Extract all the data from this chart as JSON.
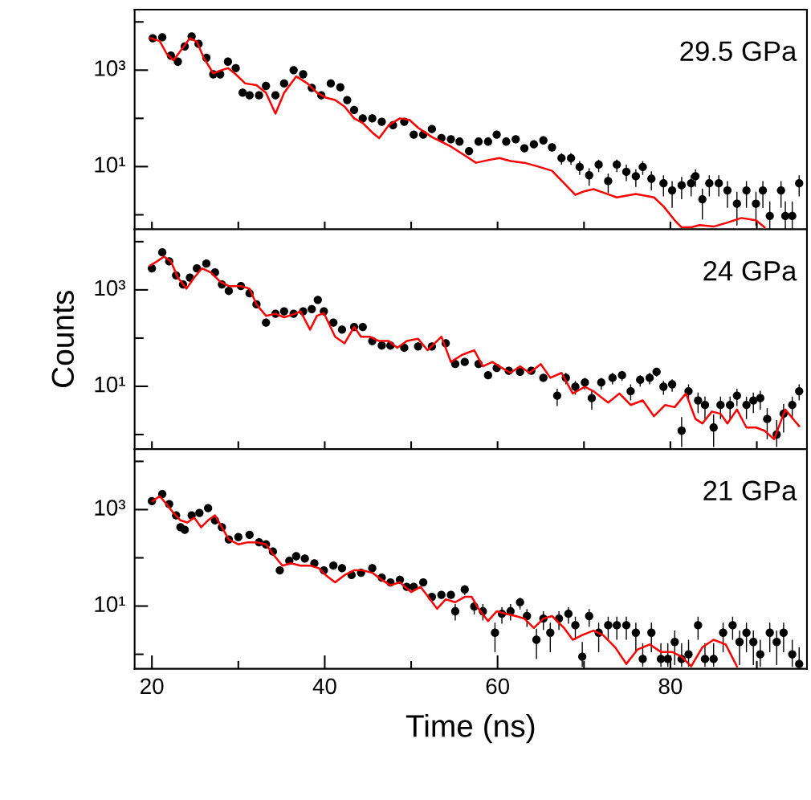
{
  "chart_data": [
    {
      "type": "scatter",
      "log": "y",
      "tick_labels": "y",
      "annotations": [
        "29.5 GPa"
      ],
      "xlim": [
        18,
        95.8
      ],
      "xticks": [
        {
          "value": 20,
          "label": null
        },
        {
          "value": 30,
          "label": null
        },
        {
          "value": 40,
          "label": null
        },
        {
          "value": 50,
          "label": null
        },
        {
          "value": 60,
          "label": null
        },
        {
          "value": 70,
          "label": null
        },
        {
          "value": 80,
          "label": null
        },
        {
          "value": 90,
          "label": null
        }
      ],
      "ylim": [
        0.5,
        18000
      ],
      "yticks": [
        {
          "value": 1,
          "label": null
        },
        {
          "value": 10,
          "label": "10¹"
        },
        {
          "value": 100,
          "label": null
        },
        {
          "value": 1000,
          "label": "10³"
        },
        {
          "value": 10000,
          "label": null
        }
      ],
      "series": [
        {
          "type": "scatter",
          "color": "#000000",
          "marker": "circle",
          "x": [
            20.1,
            21.2,
            22.2,
            23.0,
            23.8,
            24.6,
            25.4,
            26.3,
            27.1,
            27.9,
            28.8,
            29.7,
            30.5,
            31.3,
            32.4,
            33.2,
            34.3,
            35.3,
            36.4,
            37.5,
            38.5,
            39.6,
            40.7,
            41.8,
            42.6,
            43.4,
            44.4,
            45.5,
            46.6,
            47.9,
            49.2,
            50.3,
            51.4,
            52.4,
            53.5,
            54.6,
            55.6,
            56.7,
            57.8,
            58.9,
            59.9,
            61.0,
            62.1,
            63.1,
            64.2,
            65.3,
            66.3,
            67.4,
            68.5,
            69.5,
            70.6,
            71.7,
            72.8,
            73.8,
            74.9,
            76.0,
            76.8,
            77.8,
            79.2,
            80.2,
            81.3,
            82.4,
            82.9,
            83.7,
            84.5,
            85.6,
            86.6,
            87.7,
            88.8,
            89.9,
            90.7,
            91.5,
            92.8,
            93.3,
            94.1,
            94.9
          ],
          "values": [
            4600,
            4800,
            2000,
            1500,
            3100,
            5000,
            3500,
            1800,
            820,
            820,
            1500,
            1100,
            340,
            300,
            300,
            470,
            300,
            530,
            1000,
            820,
            430,
            300,
            530,
            440,
            240,
            150,
            100,
            100,
            85,
            72,
            85,
            46,
            46,
            60,
            39,
            37,
            33,
            21,
            33,
            33,
            46,
            33,
            37,
            24,
            29,
            35,
            25,
            15,
            15,
            9.8,
            6.6,
            11,
            5.0,
            11,
            7.8,
            6.3,
            9.8,
            5.6,
            4.5,
            3.2,
            4.1,
            4.5,
            6.3,
            2.1,
            4.5,
            4.5,
            3.2,
            1.7,
            3.2,
            1.7,
            3.2,
            0.95,
            3.2,
            0.95,
            0.95,
            4.5
          ],
          "errors": [
            null,
            null,
            null,
            null,
            null,
            null,
            null,
            null,
            null,
            null,
            null,
            null,
            null,
            null,
            null,
            null,
            null,
            null,
            null,
            null,
            null,
            null,
            null,
            null,
            null,
            null,
            null,
            null,
            null,
            null,
            null,
            null,
            null,
            null,
            null,
            null,
            null,
            null,
            null,
            null,
            null,
            null,
            null,
            null,
            null,
            null,
            null,
            [
              11,
              19
            ],
            [
              11,
              19
            ],
            [
              6.7,
              13
            ],
            [
              4.0,
              9.2
            ],
            [
              7.7,
              14
            ],
            [
              2.8,
              7.2
            ],
            [
              7.7,
              14
            ],
            [
              5.0,
              11
            ],
            [
              3.8,
              8.8
            ],
            [
              6.7,
              13
            ],
            [
              3.2,
              8.0
            ],
            [
              2.4,
              6.6
            ],
            [
              1.4,
              5.0
            ],
            [
              2.1,
              6.1
            ],
            [
              2.4,
              6.6
            ],
            [
              3.8,
              8.8
            ],
            [
              0.8,
              3.5
            ],
            [
              2.4,
              6.6
            ],
            [
              2.4,
              6.6
            ],
            [
              1.4,
              5.0
            ],
            [
              0.6,
              3.0
            ],
            [
              1.4,
              5.0
            ],
            [
              0.6,
              3.0
            ],
            [
              1.4,
              5.0
            ],
            [
              0.5,
              1.9
            ],
            [
              1.4,
              5.0
            ],
            [
              0.5,
              1.9
            ],
            [
              0.5,
              1.9
            ],
            [
              2.4,
              6.6
            ]
          ]
        },
        {
          "type": "line",
          "color": "#ff0000",
          "x": [
            19.8,
            20.9,
            21.7,
            22.5,
            23.3,
            24.4,
            25.2,
            26.0,
            27.1,
            27.9,
            28.8,
            29.7,
            30.8,
            32.1,
            33.2,
            34.3,
            35.3,
            36.7,
            38.0,
            39.1,
            40.1,
            41.2,
            42.3,
            43.4,
            44.4,
            45.5,
            46.3,
            47.4,
            48.7,
            49.8,
            50.8,
            52.4,
            54.6,
            56.2,
            57.5,
            58.9,
            60.2,
            61.5,
            63.1,
            64.7,
            66.3,
            67.7,
            69.0,
            70.1,
            71.1,
            72.2,
            73.8,
            76.0,
            78.1,
            79.2,
            80.5,
            81.3,
            82.4,
            83.4,
            85.0,
            86.6,
            88.2,
            89.9,
            90.9
          ],
          "values": [
            4600,
            4000,
            2200,
            1600,
            2500,
            4600,
            3900,
            1800,
            860,
            980,
            1100,
            820,
            530,
            490,
            340,
            125,
            340,
            740,
            530,
            340,
            270,
            240,
            175,
            100,
            80,
            51,
            39,
            72,
            100,
            93,
            64,
            41,
            26,
            17,
            12,
            13.6,
            15,
            13,
            12,
            10,
            8.2,
            4.5,
            2.6,
            3.1,
            3.4,
            2.9,
            2.3,
            2.7,
            2.3,
            1.5,
            0.77,
            0.55,
            0.55,
            0.61,
            0.57,
            0.69,
            0.86,
            0.77,
            0.55
          ]
        }
      ]
    },
    {
      "type": "scatter",
      "log": "y",
      "tick_labels": "y",
      "ylabel": "Counts",
      "annotations": [
        "24 GPa"
      ],
      "xlim": [
        18,
        95.8
      ],
      "xticks": [
        {
          "value": 20,
          "label": null
        },
        {
          "value": 30,
          "label": null
        },
        {
          "value": 40,
          "label": null
        },
        {
          "value": 50,
          "label": null
        },
        {
          "value": 60,
          "label": null
        },
        {
          "value": 70,
          "label": null
        },
        {
          "value": 80,
          "label": null
        },
        {
          "value": 90,
          "label": null
        }
      ],
      "ylim": [
        0.5,
        18000
      ],
      "yticks": [
        {
          "value": 1,
          "label": null
        },
        {
          "value": 10,
          "label": "10¹"
        },
        {
          "value": 100,
          "label": null
        },
        {
          "value": 1000,
          "label": "10³"
        },
        {
          "value": 10000,
          "label": null
        }
      ],
      "series": [
        {
          "type": "scatter",
          "color": "#000000",
          "marker": "circle",
          "x": [
            20.0,
            21.2,
            22.0,
            22.8,
            23.6,
            24.4,
            25.2,
            26.3,
            27.3,
            28.1,
            28.9,
            30.3,
            31.3,
            32.1,
            33.2,
            34.3,
            35.3,
            36.4,
            37.5,
            38.5,
            39.2,
            39.9,
            41.0,
            42.0,
            43.4,
            44.4,
            45.5,
            46.6,
            47.6,
            49.2,
            50.8,
            52.4,
            54.0,
            55.1,
            56.2,
            57.8,
            58.9,
            59.9,
            61.3,
            62.6,
            63.9,
            65.3,
            66.9,
            67.9,
            69.0,
            70.1,
            70.9,
            72.0,
            73.3,
            74.4,
            75.4,
            76.5,
            77.6,
            78.4,
            79.2,
            80.2,
            81.3,
            82.1,
            83.2,
            84.0,
            85.0,
            85.8,
            86.9,
            87.7,
            88.8,
            89.6,
            90.4,
            91.2,
            92.3,
            93.1,
            94.1,
            94.9
          ],
          "values": [
            2800,
            6000,
            3900,
            2000,
            1300,
            1800,
            2800,
            3500,
            2300,
            1300,
            950,
            1200,
            850,
            500,
            210,
            320,
            360,
            320,
            360,
            400,
            620,
            360,
            210,
            150,
            170,
            170,
            87,
            70,
            70,
            63,
            67,
            67,
            78,
            29,
            32,
            29,
            17,
            24,
            21,
            20,
            21,
            15,
            6.4,
            15,
            9.8,
            12,
            5.7,
            12,
            15,
            17,
            7.9,
            13.6,
            15,
            20,
            9.8,
            11,
            1.2,
            7.9,
            5.1,
            4.1,
            1.4,
            4.1,
            4.1,
            6.4,
            4.1,
            5.1,
            5.7,
            2.1,
            1.0,
            2.7,
            4.1,
            7.9
          ],
          "errors": [
            null,
            null,
            null,
            null,
            null,
            null,
            null,
            null,
            null,
            null,
            null,
            null,
            null,
            null,
            null,
            null,
            null,
            null,
            null,
            null,
            null,
            null,
            null,
            null,
            null,
            null,
            null,
            null,
            null,
            null,
            null,
            null,
            null,
            null,
            null,
            null,
            null,
            null,
            null,
            null,
            null,
            null,
            [
              3.9,
              8.9
            ],
            [
              11,
              19
            ],
            [
              6.7,
              13
            ],
            [
              8.5,
              15
            ],
            [
              3.3,
              8.1
            ],
            [
              8.5,
              15
            ],
            [
              11,
              19
            ],
            [
              13,
              21
            ],
            [
              5.1,
              11
            ],
            [
              9.9,
              17
            ],
            [
              11,
              19
            ],
            [
              16,
              24
            ],
            [
              6.7,
              13
            ],
            [
              7.7,
              14
            ],
            [
              0.55,
              2.3
            ],
            [
              5.1,
              11
            ],
            [
              2.8,
              7.4
            ],
            [
              2.1,
              6.1
            ],
            [
              0.55,
              2.6
            ],
            [
              2.1,
              6.1
            ],
            [
              2.1,
              6.1
            ],
            [
              3.9,
              8.9
            ],
            [
              2.1,
              6.1
            ],
            [
              2.8,
              7.4
            ],
            [
              3.3,
              8.1
            ],
            [
              0.8,
              3.5
            ],
            [
              0.55,
              2.0
            ],
            [
              1.1,
              4.3
            ],
            [
              2.1,
              6.1
            ],
            [
              5.1,
              11
            ]
          ]
        },
        {
          "type": "line",
          "color": "#ff0000",
          "x": [
            19.8,
            20.6,
            21.4,
            22.2,
            23.0,
            24.0,
            24.9,
            25.8,
            26.8,
            27.9,
            28.9,
            30.3,
            31.3,
            32.1,
            33.2,
            34.3,
            35.3,
            36.4,
            37.2,
            38.3,
            39.1,
            39.9,
            41.2,
            42.3,
            43.4,
            44.2,
            45.2,
            46.3,
            47.4,
            48.4,
            49.5,
            50.8,
            51.9,
            53.5,
            54.6,
            55.9,
            57.3,
            58.3,
            59.4,
            60.2,
            61.5,
            62.6,
            63.7,
            65.0,
            66.1,
            67.4,
            68.7,
            70.1,
            71.1,
            72.8,
            74.1,
            75.4,
            76.8,
            78.1,
            79.4,
            80.5,
            81.8,
            82.9,
            83.7,
            84.8,
            85.8,
            86.6,
            87.7,
            88.8,
            89.9,
            90.9,
            92.0,
            93.3,
            94.4,
            94.9
          ],
          "values": [
            3200,
            3900,
            4900,
            3900,
            1800,
            1060,
            1800,
            2800,
            2300,
            1480,
            1200,
            1200,
            1060,
            500,
            290,
            320,
            270,
            310,
            360,
            150,
            290,
            330,
            107,
            78,
            170,
            107,
            107,
            87,
            87,
            63,
            87,
            97,
            56,
            107,
            32,
            45,
            56,
            26,
            32,
            26,
            19,
            26,
            19,
            29,
            15,
            19,
            7.1,
            9.8,
            7.9,
            4.6,
            7.1,
            4.1,
            5.1,
            2.4,
            4.1,
            3.7,
            7.1,
            2.1,
            1.7,
            3.0,
            2.7,
            1.7,
            3.3,
            1.4,
            1.4,
            1.2,
            0.8,
            3.3,
            1.9,
            1.5
          ]
        }
      ]
    },
    {
      "type": "scatter",
      "log": "y",
      "xlabel": "Time (ns)",
      "annotations": [
        "21 GPa"
      ],
      "xlim": [
        18,
        95.8
      ],
      "xticks": [
        20,
        {
          "value": 30,
          "label": null
        },
        40,
        {
          "value": 50,
          "label": null
        },
        60,
        {
          "value": 70,
          "label": null
        },
        80,
        {
          "value": 90,
          "label": null
        }
      ],
      "ylim": [
        0.5,
        18000
      ],
      "yticks": [
        {
          "value": 1,
          "label": null
        },
        {
          "value": 10,
          "label": "10¹"
        },
        {
          "value": 100,
          "label": null
        },
        {
          "value": 1000,
          "label": "10³"
        },
        {
          "value": 10000,
          "label": null
        }
      ],
      "series": [
        {
          "type": "scatter",
          "color": "#000000",
          "marker": "circle",
          "x": [
            20.0,
            21.2,
            22.0,
            22.8,
            23.3,
            23.8,
            24.6,
            25.5,
            26.5,
            27.3,
            28.1,
            28.9,
            30.0,
            31.3,
            32.4,
            33.2,
            34.0,
            34.8,
            35.9,
            36.7,
            37.7,
            38.8,
            39.9,
            41.0,
            42.0,
            43.1,
            44.2,
            45.5,
            46.6,
            47.6,
            48.7,
            49.5,
            50.3,
            51.4,
            52.4,
            53.5,
            54.6,
            55.1,
            56.2,
            57.3,
            58.3,
            59.7,
            60.5,
            61.5,
            62.6,
            63.4,
            64.5,
            65.3,
            66.1,
            67.1,
            68.2,
            69.0,
            69.8,
            70.6,
            71.7,
            72.8,
            73.8,
            74.9,
            76.0,
            76.8,
            77.8,
            78.9,
            79.7,
            80.5,
            81.3,
            82.1,
            83.2,
            84.0,
            85.0,
            86.1,
            87.2,
            88.0,
            88.8,
            89.6,
            90.4,
            91.5,
            92.3,
            93.1,
            94.1,
            94.9
          ],
          "values": [
            1500,
            2100,
            1300,
            760,
            430,
            380,
            760,
            850,
            1070,
            600,
            430,
            240,
            270,
            300,
            210,
            190,
            135,
            55,
            87,
            108,
            97,
            77,
            55,
            69,
            61,
            44,
            49,
            61,
            39,
            31,
            35,
            25,
            25,
            31,
            15.5,
            17,
            17,
            7.8,
            22,
            9.8,
            7.8,
            2.8,
            6.9,
            7.8,
            12,
            6.2,
            2.0,
            5.5,
            2.8,
            5.5,
            6.9,
            4.0,
            0.89,
            6.2,
            2.8,
            4.0,
            4.0,
            4.0,
            2.8,
            0.8,
            2.8,
            0.8,
            0.8,
            1.8,
            0.8,
            1.0,
            4.0,
            0.8,
            0.8,
            2.8,
            4.0,
            1.8,
            2.8,
            1.8,
            1.0,
            2.8,
            1.8,
            2.8,
            1.0,
            0.63
          ],
          "errors": [
            null,
            null,
            null,
            null,
            null,
            null,
            null,
            null,
            null,
            null,
            null,
            null,
            null,
            null,
            null,
            null,
            null,
            null,
            null,
            null,
            null,
            null,
            null,
            null,
            null,
            null,
            null,
            null,
            null,
            null,
            null,
            null,
            null,
            null,
            null,
            null,
            null,
            [
              5.0,
              11
            ],
            [
              17,
              27
            ],
            [
              6.7,
              13
            ],
            [
              5.0,
              11
            ],
            [
              1.1,
              4.5
            ],
            [
              4.3,
              9.5
            ],
            [
              5.0,
              11
            ],
            [
              8.5,
              15
            ],
            [
              3.7,
              8.7
            ],
            [
              0.8,
              3.4
            ],
            [
              3.2,
              7.8
            ],
            [
              1.1,
              4.5
            ],
            [
              3.2,
              7.8
            ],
            [
              4.3,
              9.5
            ],
            [
              2.0,
              6.0
            ],
            [
              0.55,
              1.8
            ],
            [
              3.7,
              8.7
            ],
            [
              1.1,
              4.5
            ],
            [
              2.0,
              6.0
            ],
            [
              2.0,
              6.0
            ],
            [
              2.0,
              6.0
            ],
            [
              1.1,
              4.5
            ],
            [
              0.55,
              1.7
            ],
            [
              1.1,
              4.5
            ],
            [
              0.55,
              1.7
            ],
            [
              0.55,
              1.7
            ],
            [
              0.6,
              3.1
            ],
            [
              0.55,
              1.7
            ],
            [
              0.55,
              2.0
            ],
            [
              2.0,
              6.0
            ],
            [
              0.55,
              1.7
            ],
            [
              0.55,
              1.7
            ],
            [
              1.1,
              4.5
            ],
            [
              2.0,
              6.0
            ],
            [
              0.6,
              3.1
            ],
            [
              1.1,
              4.5
            ],
            [
              0.6,
              3.1
            ],
            [
              0.55,
              2.0
            ],
            [
              1.1,
              4.5
            ],
            [
              0.6,
              3.1
            ],
            [
              1.1,
              4.5
            ],
            [
              0.55,
              2.0
            ],
            [
              0.55,
              1.4
            ]
          ]
        },
        {
          "type": "line",
          "color": "#ff0000",
          "x": [
            20.1,
            20.9,
            21.7,
            22.5,
            23.3,
            24.1,
            24.9,
            25.7,
            26.5,
            27.3,
            28.1,
            28.9,
            30.0,
            31.1,
            32.1,
            33.2,
            34.0,
            35.1,
            36.1,
            37.2,
            38.3,
            39.3,
            40.1,
            41.2,
            42.3,
            43.4,
            44.4,
            45.5,
            46.6,
            47.6,
            48.7,
            50.0,
            51.1,
            52.2,
            53.0,
            54.0,
            55.1,
            56.2,
            57.0,
            57.8,
            58.9,
            59.9,
            61.0,
            62.1,
            63.1,
            64.2,
            65.3,
            66.3,
            67.7,
            68.7,
            69.8,
            71.1,
            72.2,
            73.6,
            74.9,
            76.2,
            77.6,
            78.9,
            80.2,
            81.3,
            82.4,
            83.7,
            85.0,
            86.4,
            87.7
          ],
          "values": [
            1500,
            1900,
            1300,
            850,
            600,
            540,
            680,
            430,
            600,
            760,
            430,
            240,
            190,
            210,
            210,
            190,
            120,
            69,
            77,
            69,
            69,
            61,
            44,
            31,
            44,
            55,
            55,
            49,
            35,
            27,
            31,
            19.5,
            25,
            13.8,
            8.8,
            13.8,
            12,
            15.5,
            15.5,
            8.8,
            4.9,
            7.8,
            6.9,
            6.2,
            5.5,
            3.5,
            5.5,
            6.2,
            3.5,
            2.0,
            2.5,
            3.1,
            2.5,
            1.4,
            0.63,
            1.26,
            1.6,
            1.12,
            1.12,
            0.89,
            0.56,
            1.4,
            2.0,
            1.6,
            0.56
          ]
        }
      ]
    }
  ]
}
